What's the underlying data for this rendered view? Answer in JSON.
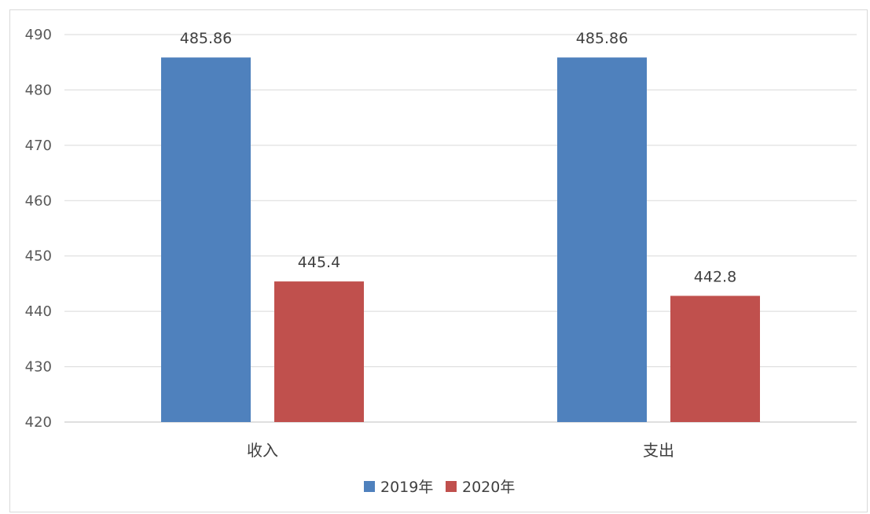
{
  "chart_data": {
    "type": "bar",
    "categories": [
      "收入",
      "支出"
    ],
    "series": [
      {
        "name": "2019年",
        "values": [
          485.86,
          485.86
        ],
        "color": "#4f81bd"
      },
      {
        "name": "2020年",
        "values": [
          445.4,
          442.8
        ],
        "color": "#c0504d"
      }
    ],
    "data_labels": [
      [
        "485.86",
        "485.86"
      ],
      [
        "445.4",
        "442.8"
      ]
    ],
    "ylim": [
      420,
      490
    ],
    "yticks": [
      420,
      430,
      440,
      450,
      460,
      470,
      480,
      490
    ],
    "grid": true,
    "legend_position": "bottom"
  }
}
